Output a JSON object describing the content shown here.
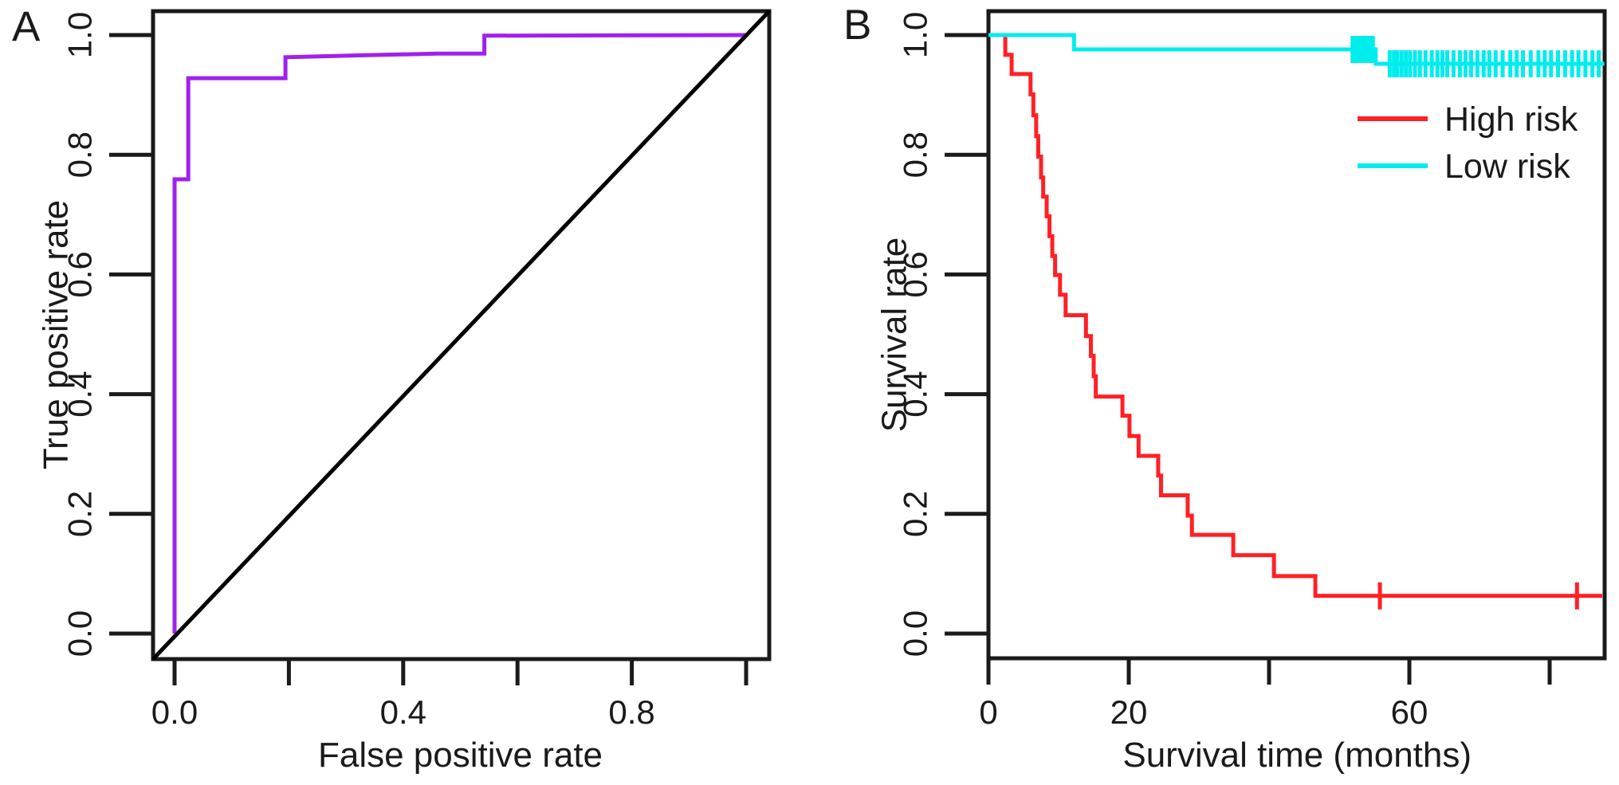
{
  "figure": {
    "background": "#ffffff",
    "axis_color": "#1a1a1a",
    "panel_letters": [
      "A",
      "B"
    ]
  },
  "chart_data": [
    {
      "panel": "A",
      "type": "line",
      "title": "",
      "xlabel": "False positive rate",
      "ylabel": "True positive rate",
      "xlim": [
        0,
        1
      ],
      "ylim": [
        0,
        1
      ],
      "grid": false,
      "x_ticks": [
        {
          "v": 0.0,
          "label": "0.0"
        },
        {
          "v": 0.2,
          "label": ""
        },
        {
          "v": 0.4,
          "label": "0.4"
        },
        {
          "v": 0.6,
          "label": ""
        },
        {
          "v": 0.8,
          "label": "0.8"
        },
        {
          "v": 1.0,
          "label": ""
        }
      ],
      "y_ticks": [
        {
          "v": 0.0,
          "label": "0.0"
        },
        {
          "v": 0.2,
          "label": "0.2"
        },
        {
          "v": 0.4,
          "label": "0.4"
        },
        {
          "v": 0.6,
          "label": "0.6"
        },
        {
          "v": 0.8,
          "label": "0.8"
        },
        {
          "v": 1.0,
          "label": "1.0"
        }
      ],
      "series": [
        {
          "name": "ROC curve",
          "color": "#A020F0",
          "kind": "polyline",
          "points": [
            [
              0,
              0
            ],
            [
              0,
              0.759
            ],
            [
              0.024,
              0.759
            ],
            [
              0.024,
              0.928
            ],
            [
              0.194,
              0.928
            ],
            [
              0.194,
              0.963
            ],
            [
              0.32,
              0.966
            ],
            [
              0.46,
              0.969
            ],
            [
              0.542,
              0.969
            ],
            [
              0.542,
              0.999
            ],
            [
              1.0,
              1.0
            ]
          ]
        },
        {
          "name": "Reference diagonal",
          "color": "#000000",
          "kind": "diagonal",
          "points": [
            [
              0,
              0
            ],
            [
              1,
              1
            ]
          ]
        }
      ]
    },
    {
      "panel": "B",
      "type": "line",
      "title": "",
      "xlabel": "Survival time (months)",
      "ylabel": "Survival rate",
      "xlim": [
        0,
        88
      ],
      "ylim": [
        0,
        1
      ],
      "grid": false,
      "x_ticks": [
        {
          "v": 0,
          "label": "0"
        },
        {
          "v": 20,
          "label": "20"
        },
        {
          "v": 40,
          "label": ""
        },
        {
          "v": 60,
          "label": "60"
        },
        {
          "v": 80,
          "label": ""
        }
      ],
      "y_ticks": [
        {
          "v": 0.0,
          "label": "0.0"
        },
        {
          "v": 0.2,
          "label": "0.2"
        },
        {
          "v": 0.4,
          "label": "0.4"
        },
        {
          "v": 0.6,
          "label": "0.6"
        },
        {
          "v": 0.8,
          "label": "0.8"
        },
        {
          "v": 1.0,
          "label": "1.0"
        }
      ],
      "legend": {
        "position": "top-right",
        "entries": [
          {
            "label": "High risk",
            "color": "#FF2026"
          },
          {
            "label": "Low risk",
            "color": "#00EDED"
          }
        ]
      },
      "series": [
        {
          "name": "High risk",
          "color": "#FF2026",
          "kind": "km-step",
          "steps": [
            [
              0,
              1.0
            ],
            [
              2.4,
              0.967
            ],
            [
              3.3,
              0.935
            ],
            [
              6.0,
              0.901
            ],
            [
              6.4,
              0.866
            ],
            [
              6.8,
              0.831
            ],
            [
              7.1,
              0.797
            ],
            [
              7.5,
              0.762
            ],
            [
              7.8,
              0.73
            ],
            [
              8.3,
              0.697
            ],
            [
              8.7,
              0.664
            ],
            [
              9.1,
              0.631
            ],
            [
              9.5,
              0.599
            ],
            [
              10.2,
              0.566
            ],
            [
              11.0,
              0.532
            ],
            [
              13.9,
              0.497
            ],
            [
              14.6,
              0.464
            ],
            [
              15.0,
              0.43
            ],
            [
              15.3,
              0.396
            ],
            [
              19.1,
              0.364
            ],
            [
              20.1,
              0.33
            ],
            [
              21.4,
              0.297
            ],
            [
              24.2,
              0.264
            ],
            [
              24.6,
              0.231
            ],
            [
              28.4,
              0.197
            ],
            [
              29.0,
              0.165
            ],
            [
              34.9,
              0.131
            ],
            [
              40.7,
              0.096
            ],
            [
              46.6,
              0.063
            ]
          ],
          "end_time": 87.5,
          "censors": [
            [
              55.8,
              0.063
            ],
            [
              83.9,
              0.063
            ]
          ]
        },
        {
          "name": "Low risk",
          "color": "#00EDED",
          "kind": "km-step",
          "steps": [
            [
              0,
              1.0
            ],
            [
              12.2,
              0.976
            ],
            [
              55.2,
              0.952
            ]
          ],
          "end_time": 87.8,
          "censors": [
            [
              51.9,
              0.976
            ],
            [
              52.4,
              0.976
            ],
            [
              52.9,
              0.976
            ],
            [
              53.4,
              0.976
            ],
            [
              53.9,
              0.976
            ],
            [
              54.4,
              0.976
            ],
            [
              54.8,
              0.976
            ],
            [
              57.2,
              0.952
            ],
            [
              57.8,
              0.952
            ],
            [
              58.3,
              0.952
            ],
            [
              58.9,
              0.952
            ],
            [
              59.5,
              0.952
            ],
            [
              60.1,
              0.952
            ],
            [
              60.8,
              0.952
            ],
            [
              61.5,
              0.952
            ],
            [
              62.3,
              0.952
            ],
            [
              63.2,
              0.952
            ],
            [
              64.0,
              0.952
            ],
            [
              64.7,
              0.952
            ],
            [
              65.4,
              0.952
            ],
            [
              66.3,
              0.952
            ],
            [
              67.2,
              0.952
            ],
            [
              68.0,
              0.952
            ],
            [
              68.8,
              0.952
            ],
            [
              69.7,
              0.952
            ],
            [
              70.6,
              0.952
            ],
            [
              71.4,
              0.952
            ],
            [
              72.3,
              0.952
            ],
            [
              73.3,
              0.952
            ],
            [
              74.4,
              0.952
            ],
            [
              75.3,
              0.952
            ],
            [
              76.2,
              0.952
            ],
            [
              77.3,
              0.952
            ],
            [
              78.4,
              0.952
            ],
            [
              79.3,
              0.952
            ],
            [
              80.2,
              0.952
            ],
            [
              81.2,
              0.952
            ],
            [
              82.2,
              0.952
            ],
            [
              83.2,
              0.952
            ],
            [
              84.1,
              0.952
            ],
            [
              85.1,
              0.952
            ],
            [
              86.1,
              0.952
            ],
            [
              87.0,
              0.952
            ]
          ]
        }
      ]
    }
  ]
}
